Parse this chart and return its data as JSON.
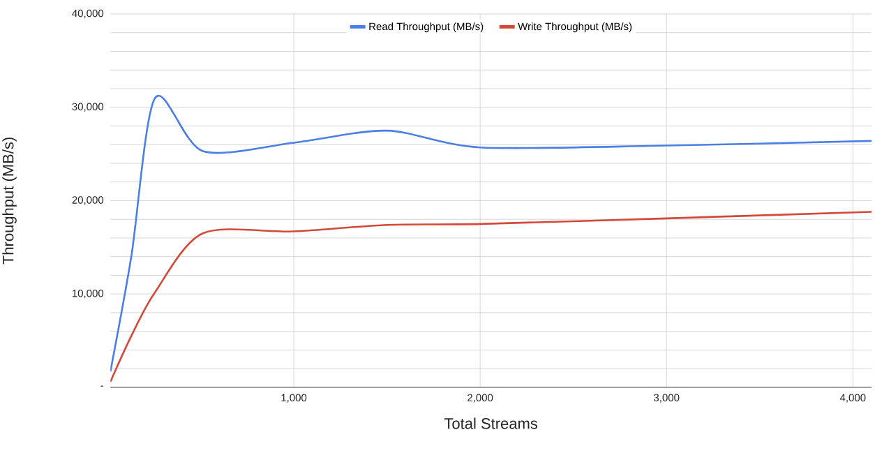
{
  "chart_data": {
    "type": "line",
    "xlabel": "Total Streams",
    "ylabel": "Throughput (MB/s)",
    "x": [
      16,
      128,
      256,
      512,
      1000,
      1500,
      2000,
      3000,
      4100
    ],
    "series": [
      {
        "name": "Read Throughput (MB/s)",
        "color": "#4a7fe6",
        "values": [
          1700,
          14000,
          31000,
          25300,
          26200,
          27500,
          25700,
          25900,
          26400
        ]
      },
      {
        "name": "Write Throughput (MB/s)",
        "color": "#d2493a",
        "values": [
          600,
          5500,
          10200,
          16500,
          16700,
          17400,
          17500,
          18100,
          18800
        ]
      }
    ],
    "xlim": [
      16,
      4100
    ],
    "ylim": [
      0,
      40000
    ],
    "xticks": [
      {
        "value": 1000,
        "label": "1,000"
      },
      {
        "value": 2000,
        "label": "2,000"
      },
      {
        "value": 3000,
        "label": "3,000"
      },
      {
        "value": 4000,
        "label": "4,000"
      }
    ],
    "yticks": [
      {
        "value": 0,
        "label": "-"
      },
      {
        "value": 2000,
        "label": null
      },
      {
        "value": 4000,
        "label": null
      },
      {
        "value": 6000,
        "label": null
      },
      {
        "value": 8000,
        "label": null
      },
      {
        "value": 10000,
        "label": "10,000"
      },
      {
        "value": 12000,
        "label": null
      },
      {
        "value": 14000,
        "label": null
      },
      {
        "value": 16000,
        "label": null
      },
      {
        "value": 18000,
        "label": null
      },
      {
        "value": 20000,
        "label": "20,000"
      },
      {
        "value": 22000,
        "label": null
      },
      {
        "value": 24000,
        "label": null
      },
      {
        "value": 26000,
        "label": null
      },
      {
        "value": 28000,
        "label": null
      },
      {
        "value": 30000,
        "label": "30,000"
      },
      {
        "value": 32000,
        "label": null
      },
      {
        "value": 34000,
        "label": null
      },
      {
        "value": 36000,
        "label": null
      },
      {
        "value": 38000,
        "label": null
      },
      {
        "value": 40000,
        "label": "40,000"
      }
    ],
    "grid": true,
    "legend": "top",
    "marker": "none",
    "line_style": "solid"
  }
}
